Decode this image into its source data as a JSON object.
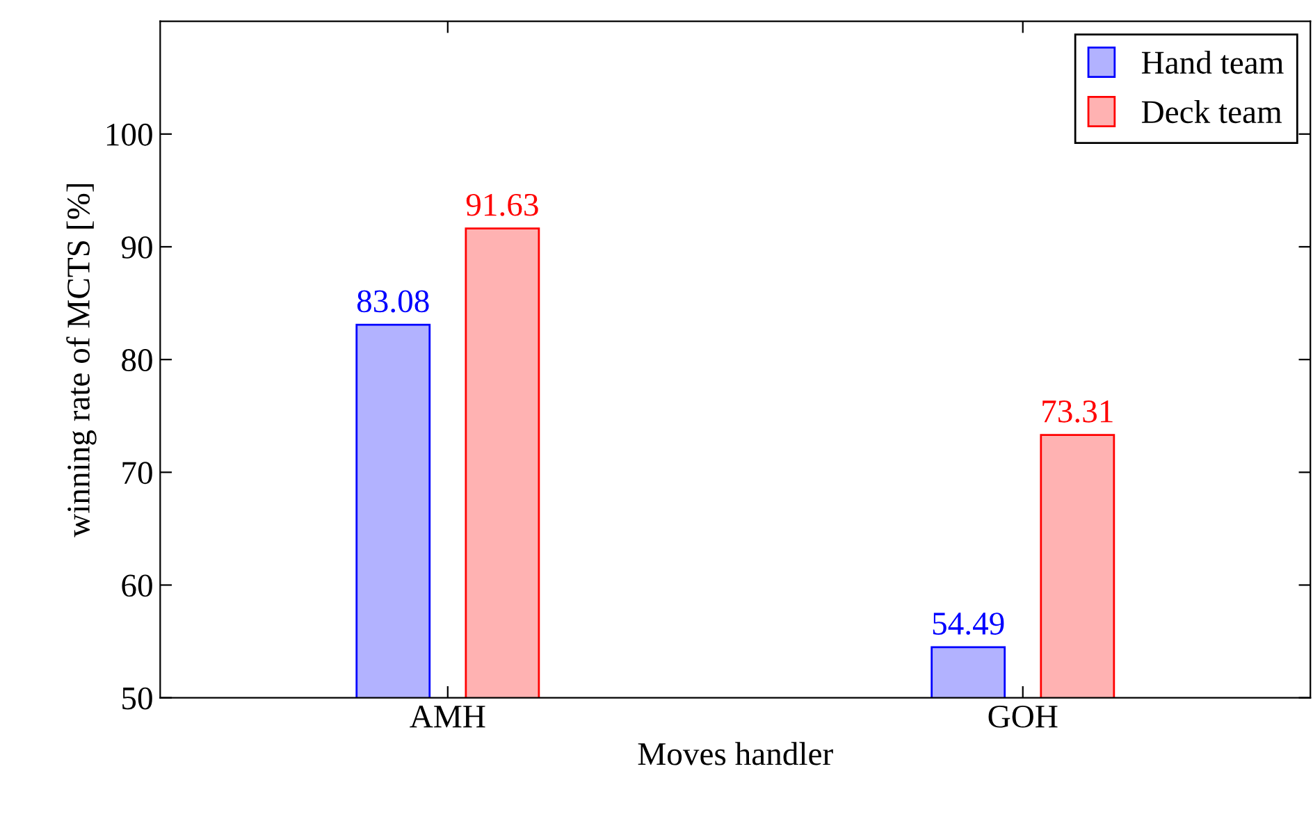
{
  "chart_data": {
    "type": "bar",
    "xlabel": "Moves handler",
    "ylabel": "winning rate of MCTS [%]",
    "categories": [
      "AMH",
      "GOH"
    ],
    "series": [
      {
        "name": "Hand team",
        "color": "#0000ff",
        "values": [
          83.08,
          54.49
        ]
      },
      {
        "name": "Deck team",
        "color": "#ff0000",
        "values": [
          91.63,
          73.31
        ]
      }
    ],
    "ylim": [
      50,
      110
    ],
    "yticks": [
      50,
      60,
      70,
      80,
      90,
      100
    ],
    "data_labels": true,
    "legend": "top right",
    "grid": false
  }
}
